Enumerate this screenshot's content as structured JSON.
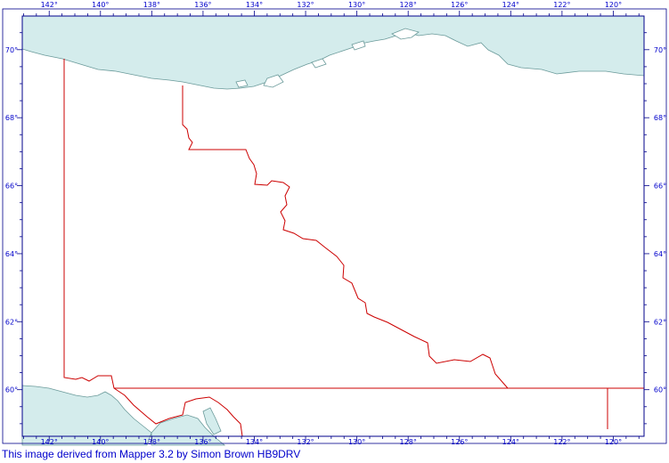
{
  "map": {
    "colors": {
      "sea": "#d4ecec",
      "sea_outline": "#6a9a9a",
      "border": "#cc0000",
      "frame": "#00008b",
      "labels": "#0000cc"
    },
    "longitudes": [
      -142,
      -140,
      -138,
      -136,
      -134,
      -132,
      -130,
      -128,
      -126,
      -124,
      -122,
      -120
    ],
    "latitudes": [
      70,
      68,
      66,
      64,
      62,
      60
    ],
    "longitude_labels": [
      "142°",
      "140°",
      "138°",
      "136°",
      "134°",
      "132°",
      "130°",
      "128°",
      "126°",
      "124°",
      "122°",
      "120°"
    ],
    "latitude_labels": [
      "70°",
      "68°",
      "66°",
      "64°",
      "62°",
      "60°"
    ],
    "lon_range": [
      -143.05,
      -118.8
    ],
    "lat_range": [
      58.63,
      70.99
    ],
    "credit": "This image derived from Mapper 3.2 by Simon Brown HB9DRV"
  }
}
